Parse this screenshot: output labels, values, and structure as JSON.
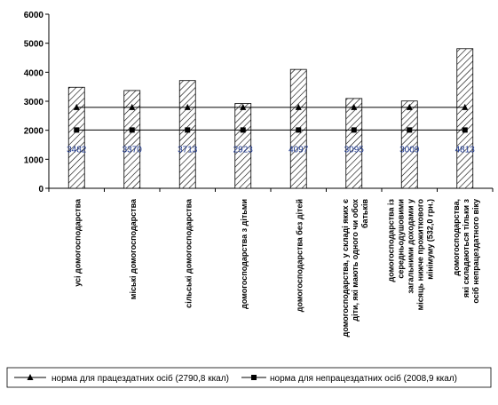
{
  "chart_data": {
    "type": "bar",
    "title": "",
    "xlabel": "",
    "ylabel": "",
    "ylim": [
      0,
      6000
    ],
    "yticks": [
      0,
      1000,
      2000,
      3000,
      4000,
      5000,
      6000
    ],
    "categories": [
      [
        "усі домогосподарства"
      ],
      [
        "міські домогосподарства"
      ],
      [
        "сільські домогосподарства"
      ],
      [
        "домогосподарства з дітьми"
      ],
      [
        "домогосподарства без дітей"
      ],
      [
        "домогосподарства, у складі яких є",
        "діти, які мають одного чи обох",
        "батьків"
      ],
      [
        "домогосподарства із",
        "середньодушовими",
        "загальними доходами у",
        "місяць нижче прожиткового",
        "мінімуму (532,0 грн.)"
      ],
      [
        "домогосподарства,",
        "які складаються тільки з",
        "осіб непрацездатного віку"
      ]
    ],
    "values": [
      3482,
      3370,
      3713,
      2923,
      4097,
      3095,
      3009,
      4813
    ],
    "data_labels": [
      "3482",
      "3370",
      "3713",
      "2923",
      "4097",
      "3095",
      "3009",
      "4813"
    ],
    "bar_pattern": "diagonal-hatch",
    "series_lines": [
      {
        "name": "норма для працездатних осіб (2790,8 ккал)",
        "value": 2790.8,
        "marker": "triangle",
        "color": "#000000"
      },
      {
        "name": "норма для непрацездатних осіб (2008,9 ккал)",
        "value": 2008.9,
        "marker": "square",
        "color": "#000000"
      }
    ],
    "legend_position": "bottom",
    "grid": false,
    "colors": {
      "bar_fill": "#ffffff",
      "bar_hatch": "#000000",
      "data_label": "#1f3a93",
      "axis": "#000000"
    }
  }
}
